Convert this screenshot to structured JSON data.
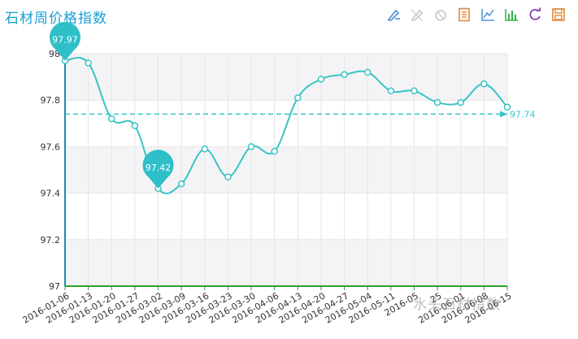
{
  "title": "石材周价格指数",
  "watermark": "水头石材指数",
  "toolbox": [
    {
      "name": "mark-icon",
      "color": "#4a8fd8"
    },
    {
      "name": "mark-undo-icon",
      "color": "#c8c8c8"
    },
    {
      "name": "clear-mark-icon",
      "color": "#c8c8c8"
    },
    {
      "name": "data-view-icon",
      "color": "#e0883a"
    },
    {
      "name": "line-chart-icon",
      "color": "#4a8fd8"
    },
    {
      "name": "bar-chart-icon",
      "color": "#2fb24e"
    },
    {
      "name": "restore-icon",
      "color": "#8a3fb0"
    },
    {
      "name": "save-image-icon",
      "color": "#e0883a"
    }
  ],
  "chart_data": {
    "type": "line",
    "title": "石材周价格指数",
    "categories": [
      "2016-01-06",
      "2016-01-13",
      "2016-01-20",
      "2016-01-27",
      "2016-03-02",
      "2016-03-09",
      "2016-03-16",
      "2016-03-23",
      "2016-03-30",
      "2016-04-06",
      "2016-04-13",
      "2016-04-20",
      "2016-04-27",
      "2016-05-04",
      "2016-05-11",
      "2016-05-18",
      "2016-05-25",
      "2016-06-01",
      "2016-06-08",
      "2016-06-15"
    ],
    "tick_labels": [
      "2016-01-06",
      "2016-01-13",
      "2016-01-20",
      "2016-01-27",
      "2016-03-02",
      "2016-03-09",
      "2016-03-16",
      "2016-03-23",
      "2016-03-30",
      "2016-04-06",
      "2016-04-13",
      "2016-04-20",
      "2016-04-27",
      "2016-05-04",
      "2016-05-11",
      "2016-05",
      "25",
      "2016-06-01",
      "2016-06-08",
      "2016-06-15"
    ],
    "series": [
      {
        "values": [
          97.97,
          97.96,
          97.72,
          97.69,
          97.42,
          97.44,
          97.59,
          97.47,
          97.6,
          97.58,
          97.81,
          97.89,
          97.91,
          97.92,
          97.84,
          97.84,
          97.79,
          97.79,
          97.87,
          97.77
        ]
      }
    ],
    "mark_points": [
      {
        "type": "max",
        "label": "97.97",
        "index": 0
      },
      {
        "type": "min",
        "label": "97.42",
        "index": 4
      }
    ],
    "mark_line": {
      "type": "average",
      "value": 97.74,
      "label": "97.74"
    },
    "ylim": [
      97,
      98
    ],
    "yticks": [
      97,
      97.2,
      97.4,
      97.6,
      97.8,
      98
    ],
    "ytick_labels": [
      "97",
      "97.2",
      "97.4",
      "97.6",
      "97.8",
      "98"
    ],
    "grid": true,
    "colors": {
      "line": "#39c4c4",
      "pin": "#2ebfc8",
      "axis_y": "#1a8fb0",
      "axis_x": "#2e9e2e",
      "grid": "#e6e6e6",
      "band": "#f4f4f6"
    }
  }
}
